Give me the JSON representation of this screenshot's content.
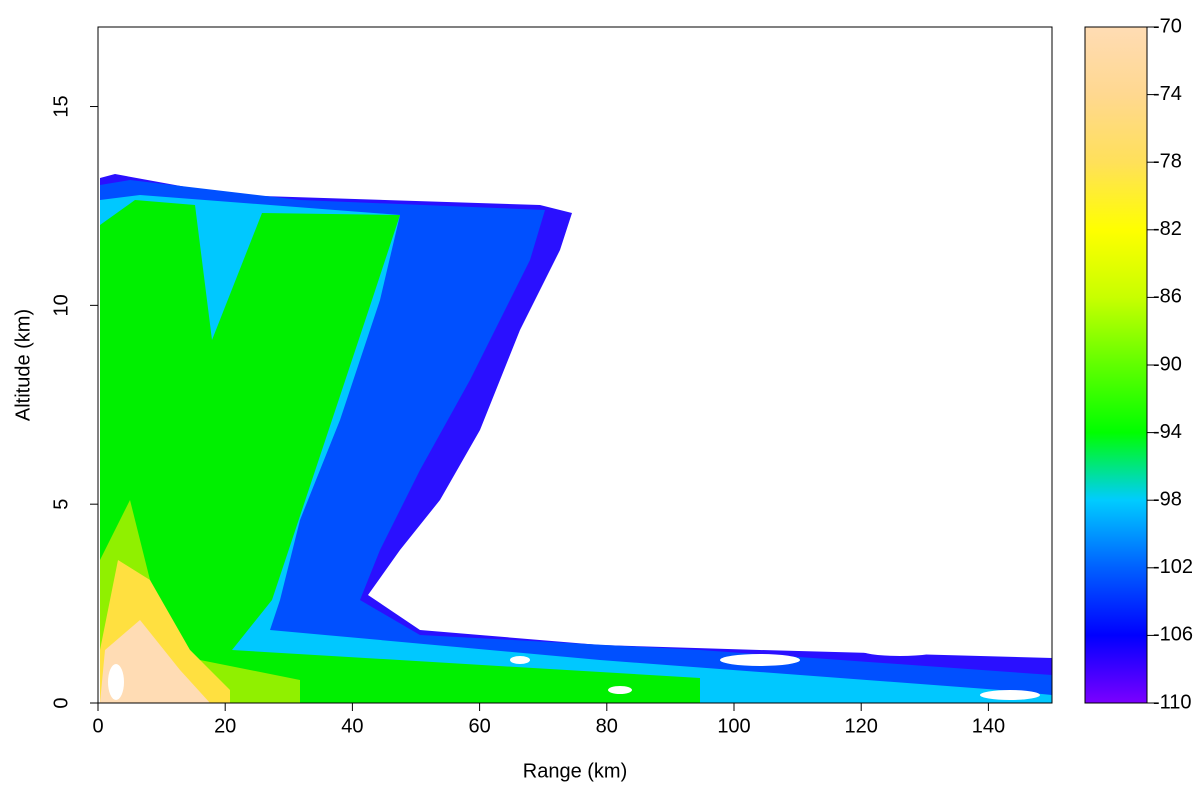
{
  "chart_data": {
    "type": "filled-contour",
    "x_label": "Range (km)",
    "y_label": "Altitude (km)",
    "xlim": [
      0,
      150
    ],
    "xticks": [
      0,
      20,
      40,
      60,
      80,
      100,
      120,
      140
    ],
    "ylim": [
      0,
      17
    ],
    "yticks": [
      0,
      5,
      10,
      15
    ],
    "colorbar": {
      "zlim": [
        -110,
        -70
      ],
      "zticks": [
        -70,
        -74,
        -78,
        -82,
        -86,
        -90,
        -94,
        -98,
        -102,
        -106,
        -110
      ],
      "colors": [
        "#7b00ff",
        "#0000ff",
        "#0060ff",
        "#00ccff",
        "#00ff00",
        "#60ff00",
        "#c8ff00",
        "#ffff00",
        "#ffe05a",
        "#ffd890",
        "#ffdcb4"
      ]
    }
  }
}
